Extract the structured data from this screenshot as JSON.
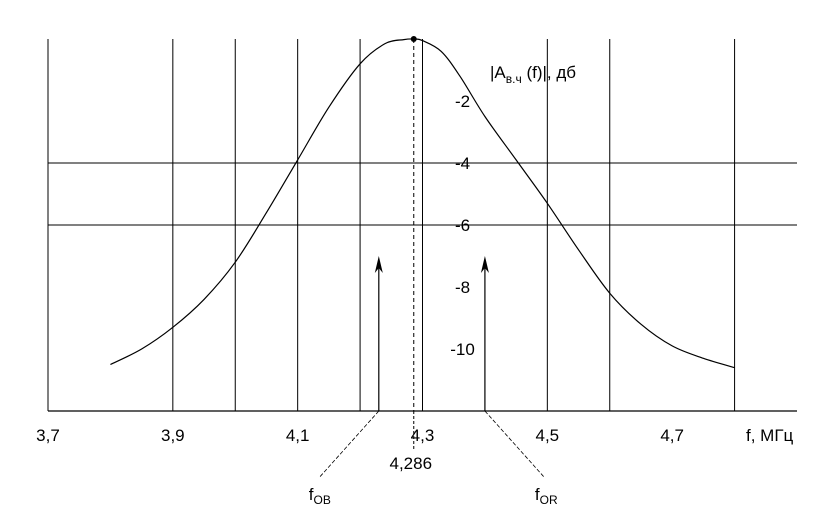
{
  "chart_data": {
    "type": "line",
    "title": "",
    "xlabel": "f, МГц",
    "ylabel_parts": {
      "main": "|A",
      "sub": "в.ч",
      "rest": " (f)|, дб"
    },
    "xlim": [
      3.7,
      4.9
    ],
    "ylim": [
      -12,
      0
    ],
    "x_ticks": [
      3.7,
      3.9,
      4.1,
      4.3,
      4.5,
      4.7
    ],
    "x_tick_labels": [
      "3,7",
      "3,9",
      "4,1",
      "4,3",
      "4,5",
      "4,7"
    ],
    "y_ticks": [
      -2,
      -4,
      -6,
      -8,
      -10
    ],
    "y_tick_labels": [
      "-2",
      "-4",
      "-6",
      "-8",
      "-10"
    ],
    "x_grid": [
      3.7,
      3.9,
      4.0,
      4.1,
      4.2,
      4.3,
      4.5,
      4.6,
      4.8
    ],
    "y_grid": [
      -4,
      -6
    ],
    "grid": true,
    "series": [
      {
        "x": [
          3.8,
          3.85,
          3.9,
          3.95,
          4.0,
          4.05,
          4.1,
          4.15,
          4.2,
          4.24,
          4.27,
          4.286,
          4.3,
          4.33,
          4.36,
          4.4,
          4.45,
          4.5,
          4.55,
          4.6,
          4.65,
          4.7,
          4.75,
          4.8
        ],
        "y": [
          -10.5,
          -10.0,
          -9.3,
          -8.4,
          -7.2,
          -5.6,
          -3.9,
          -2.2,
          -0.8,
          -0.15,
          -0.02,
          0,
          -0.05,
          -0.4,
          -1.2,
          -2.5,
          -3.9,
          -5.3,
          -6.8,
          -8.2,
          -9.2,
          -9.9,
          -10.3,
          -10.6
        ]
      }
    ],
    "peak": {
      "x": 4.286,
      "y": 0,
      "label": "4,286"
    },
    "markers": [
      {
        "x": 4.23,
        "label_main": "f",
        "label_sub": "OB"
      },
      {
        "x": 4.4,
        "label_main": "f",
        "label_sub": "OR"
      }
    ]
  }
}
